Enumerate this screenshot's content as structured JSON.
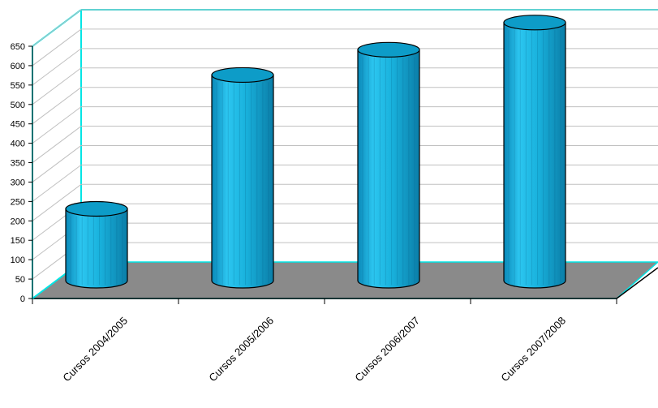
{
  "chart_data": {
    "type": "bar",
    "style": "3d-cylinder",
    "categories": [
      "Cursos 2004/2005",
      "Cursos 2005/2006",
      "Cursos 2006/2007",
      "Cursos 2007/2008"
    ],
    "values": [
      185,
      530,
      595,
      665
    ],
    "y_ticks": [
      "0",
      "50",
      "100",
      "150",
      "200",
      "250",
      "300",
      "350",
      "400",
      "450",
      "500",
      "550",
      "600",
      "650"
    ],
    "ylim": [
      0,
      650
    ],
    "grid": true,
    "legend": "none",
    "colors": {
      "bar": "#19b2dd",
      "bar_dark": "#0b7ea8",
      "bar_top": "#0d9cc8",
      "floor": "#8a8a8a",
      "wall_edge": "#00e5e5",
      "gridline": "#c0c0c0"
    }
  }
}
